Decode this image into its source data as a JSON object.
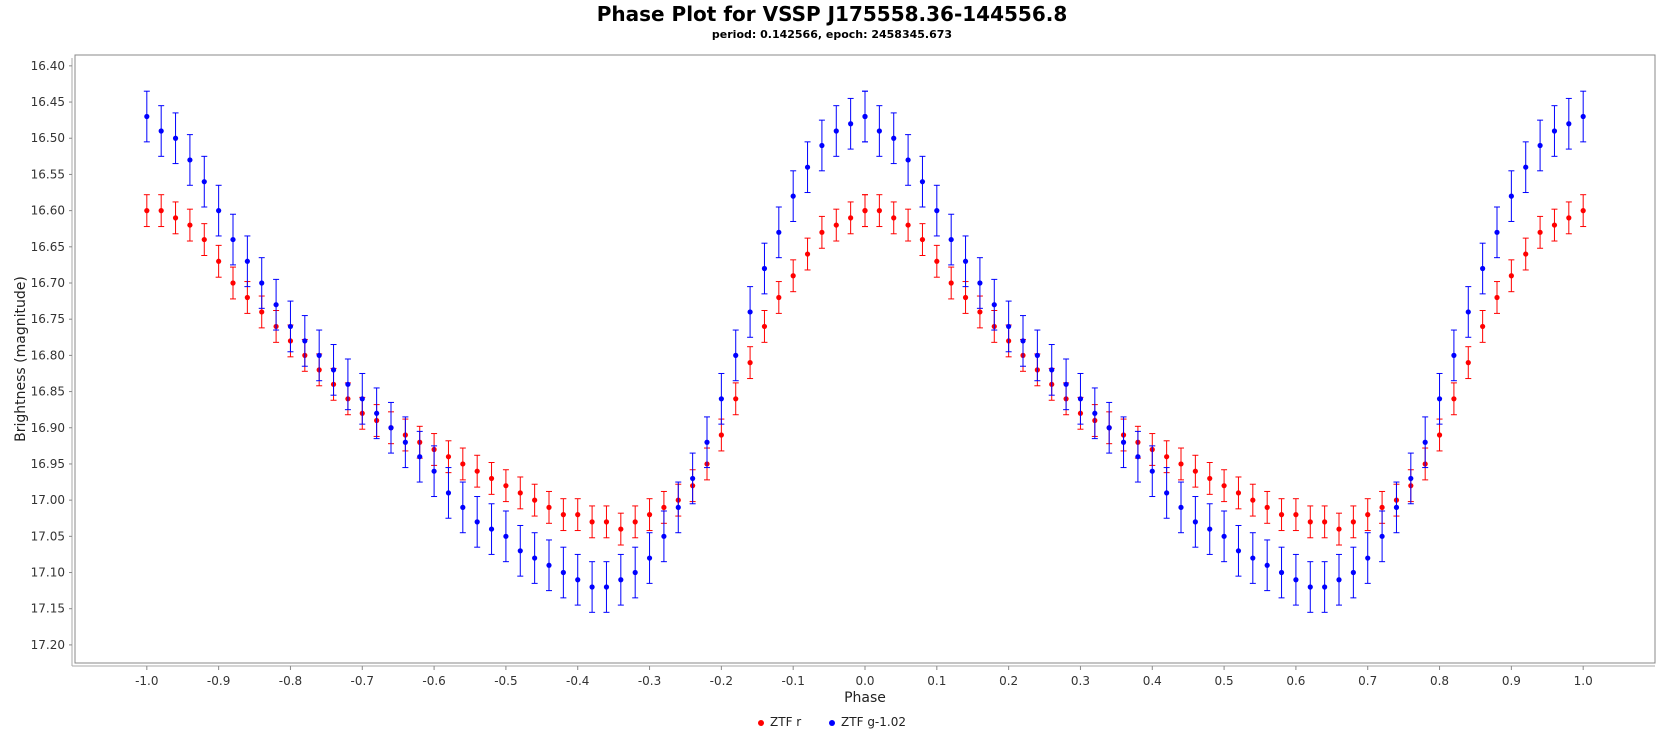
{
  "chart_data": {
    "type": "scatter",
    "title": "Phase Plot for VSSP J175558.36-144556.8",
    "subtitle": "period: 0.142566, epoch: 2458345.673",
    "xlabel": "Phase",
    "ylabel": "Brightness (magnitude)",
    "xlim": [
      -1.1,
      1.1
    ],
    "ylim": [
      16.385,
      17.225
    ],
    "y_inverted": true,
    "x_ticks": [
      -1.0,
      -0.9,
      -0.8,
      -0.7,
      -0.6,
      -0.5,
      -0.4,
      -0.3,
      -0.2,
      -0.1,
      0.0,
      0.1,
      0.2,
      0.3,
      0.4,
      0.5,
      0.6,
      0.7,
      0.8,
      0.9,
      1.0
    ],
    "x_tick_labels": [
      "-1.0",
      "-0.9",
      "-0.8",
      "-0.7",
      "-0.6",
      "-0.5",
      "-0.4",
      "-0.3",
      "-0.2",
      "-0.1",
      "0.0",
      "0.1",
      "0.2",
      "0.3",
      "0.4",
      "0.5",
      "0.6",
      "0.7",
      "0.8",
      "0.9",
      "1.0"
    ],
    "y_ticks": [
      16.4,
      16.45,
      16.5,
      16.55,
      16.6,
      16.65,
      16.7,
      16.75,
      16.8,
      16.85,
      16.9,
      16.95,
      17.0,
      17.05,
      17.1,
      17.15,
      17.2
    ],
    "y_tick_labels": [
      "16.40",
      "16.45",
      "16.50",
      "16.55",
      "16.60",
      "16.65",
      "16.70",
      "16.75",
      "16.80",
      "16.85",
      "16.90",
      "16.95",
      "17.00",
      "17.05",
      "17.10",
      "17.15",
      "17.20"
    ],
    "grid": false,
    "legend_position": "bottom-center",
    "series": [
      {
        "name": "ZTF r",
        "color": "#ff0000",
        "error": 0.022,
        "x": [
          0.0,
          0.02,
          0.04,
          0.06,
          0.08,
          0.1,
          0.12,
          0.14,
          0.16,
          0.18,
          0.2,
          0.22,
          0.24,
          0.26,
          0.28,
          0.3,
          0.32,
          0.34,
          0.36,
          0.38,
          0.4,
          0.42,
          0.44,
          0.46,
          0.48,
          0.5,
          0.52,
          0.54,
          0.56,
          0.58,
          0.6,
          0.62,
          0.64,
          0.66,
          0.68,
          0.7,
          0.72,
          0.74,
          0.76,
          0.78,
          0.8,
          0.82,
          0.84,
          0.86,
          0.88,
          0.9,
          0.92,
          0.94,
          0.96,
          0.98,
          1.0
        ],
        "y": [
          16.6,
          16.6,
          16.61,
          16.62,
          16.64,
          16.67,
          16.7,
          16.72,
          16.74,
          16.76,
          16.78,
          16.8,
          16.82,
          16.84,
          16.86,
          16.88,
          16.89,
          16.9,
          16.91,
          16.92,
          16.93,
          16.94,
          16.95,
          16.96,
          16.97,
          16.98,
          16.99,
          17.0,
          17.01,
          17.02,
          17.02,
          17.03,
          17.03,
          17.04,
          17.03,
          17.02,
          17.01,
          17.0,
          16.98,
          16.95,
          16.91,
          16.86,
          16.81,
          16.76,
          16.72,
          16.69,
          16.66,
          16.63,
          16.62,
          16.61,
          16.6
        ]
      },
      {
        "name": "ZTF g-1.02",
        "color": "#0000ff",
        "error": 0.035,
        "x": [
          0.0,
          0.02,
          0.04,
          0.06,
          0.08,
          0.1,
          0.12,
          0.14,
          0.16,
          0.18,
          0.2,
          0.22,
          0.24,
          0.26,
          0.28,
          0.3,
          0.32,
          0.34,
          0.36,
          0.38,
          0.4,
          0.42,
          0.44,
          0.46,
          0.48,
          0.5,
          0.52,
          0.54,
          0.56,
          0.58,
          0.6,
          0.62,
          0.64,
          0.66,
          0.68,
          0.7,
          0.72,
          0.74,
          0.76,
          0.78,
          0.8,
          0.82,
          0.84,
          0.86,
          0.88,
          0.9,
          0.92,
          0.94,
          0.96,
          0.98,
          1.0
        ],
        "y": [
          16.47,
          16.49,
          16.5,
          16.53,
          16.56,
          16.6,
          16.64,
          16.67,
          16.7,
          16.73,
          16.76,
          16.78,
          16.8,
          16.82,
          16.84,
          16.86,
          16.88,
          16.9,
          16.92,
          16.94,
          16.96,
          16.99,
          17.01,
          17.03,
          17.04,
          17.05,
          17.07,
          17.08,
          17.09,
          17.1,
          17.11,
          17.12,
          17.12,
          17.11,
          17.1,
          17.08,
          17.05,
          17.01,
          16.97,
          16.92,
          16.86,
          16.8,
          16.74,
          16.68,
          16.63,
          16.58,
          16.54,
          16.51,
          16.49,
          16.48,
          16.47
        ]
      }
    ]
  }
}
